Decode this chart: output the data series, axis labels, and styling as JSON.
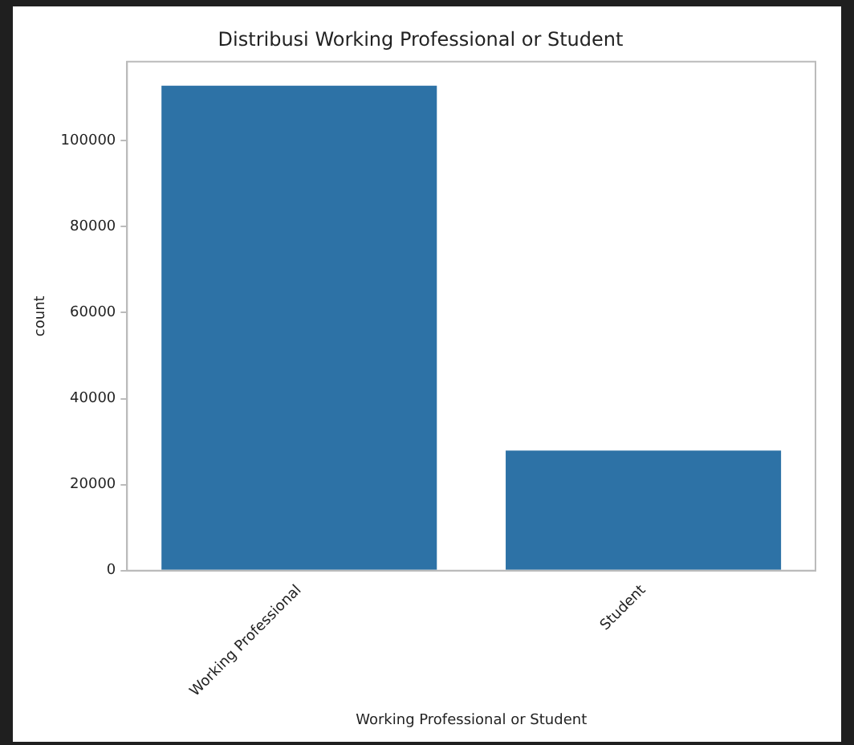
{
  "chart_data": {
    "type": "bar",
    "title": "Distribusi Working Professional or Student",
    "xlabel": "Working Professional or Student",
    "ylabel": "count",
    "categories": [
      "Working Professional",
      "Student"
    ],
    "values": [
      112800,
      27900
    ],
    "color": "#2d72a6",
    "ylim": [
      0,
      118400
    ],
    "yticks": [
      0,
      20000,
      40000,
      60000,
      80000,
      100000
    ],
    "grid": false,
    "legend": false
  }
}
